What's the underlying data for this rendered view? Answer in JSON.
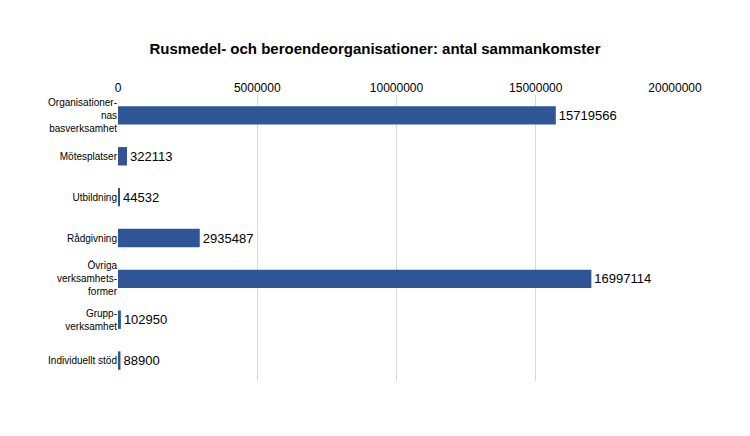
{
  "chart_data": {
    "type": "bar",
    "orientation": "horizontal",
    "title": "Rusmedel- och beroendeorganisationer: antal sammankomster",
    "categories": [
      "Organisationer-\nnas\nbasverksamhet",
      "Mötesplatser",
      "Utbildning",
      "Rådgivning",
      "Övriga\nverksamhets-\nformer",
      "Grupp-\nverksamhet",
      "Individuellt stöd"
    ],
    "values": [
      15719566,
      322113,
      44532,
      2935487,
      16997114,
      102950,
      88900
    ],
    "color": "#2f5597",
    "xlim": [
      0,
      20000000
    ],
    "xticks": [
      0,
      5000000,
      10000000,
      15000000,
      20000000
    ],
    "grid": true,
    "data_labels": true
  }
}
